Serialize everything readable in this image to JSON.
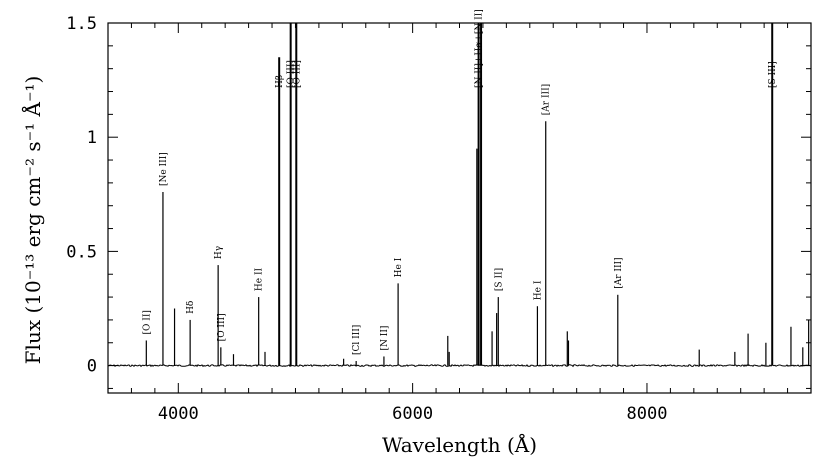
{
  "chart_data": {
    "type": "line",
    "title": "",
    "xlabel": "Wavelength (Å)",
    "ylabel": "Flux (10⁻¹³ erg cm⁻² s⁻¹ Å⁻¹)",
    "xlim": [
      3400,
      9400
    ],
    "ylim": [
      -0.12,
      1.5
    ],
    "xticks": [
      4000,
      6000,
      8000
    ],
    "xtick_labels": [
      "4000",
      "6000",
      "8000"
    ],
    "yticks": [
      0,
      0.5,
      1,
      1.5
    ],
    "ytick_labels": [
      "0",
      "0.5",
      "1",
      "1.5"
    ],
    "grid": false,
    "series": [
      {
        "lines": [
          {
            "x": 3727,
            "y": 0.11,
            "label": "[O II]"
          },
          {
            "x": 3869,
            "y": 0.76,
            "label": "[Ne III]"
          },
          {
            "x": 3968,
            "y": 0.25,
            "label": ""
          },
          {
            "x": 4101,
            "y": 0.2,
            "label": "Hδ"
          },
          {
            "x": 4340,
            "y": 0.44,
            "label": "Hγ"
          },
          {
            "x": 4363,
            "y": 0.08,
            "label": "[O III]"
          },
          {
            "x": 4471,
            "y": 0.05,
            "label": ""
          },
          {
            "x": 4686,
            "y": 0.3,
            "label": "He II"
          },
          {
            "x": 4740,
            "y": 0.06,
            "label": ""
          },
          {
            "x": 4861,
            "y": 1.35,
            "label": "Hβ"
          },
          {
            "x": 4959,
            "y": 1.5,
            "label": "[O III]"
          },
          {
            "x": 5007,
            "y": 1.5,
            "label": "[O III]"
          },
          {
            "x": 5411,
            "y": 0.03,
            "label": ""
          },
          {
            "x": 5518,
            "y": 0.02,
            "label": "[Cl III]"
          },
          {
            "x": 5755,
            "y": 0.04,
            "label": "[N II]"
          },
          {
            "x": 5876,
            "y": 0.36,
            "label": "He I"
          },
          {
            "x": 6300,
            "y": 0.13,
            "label": ""
          },
          {
            "x": 6312,
            "y": 0.06,
            "label": ""
          },
          {
            "x": 6548,
            "y": 0.95,
            "label": ""
          },
          {
            "x": 6563,
            "y": 1.5,
            "label": "[N II]+Hα+[N II]"
          },
          {
            "x": 6584,
            "y": 1.5,
            "label": ""
          },
          {
            "x": 6678,
            "y": 0.15,
            "label": ""
          },
          {
            "x": 6717,
            "y": 0.23,
            "label": ""
          },
          {
            "x": 6731,
            "y": 0.3,
            "label": "[S II]"
          },
          {
            "x": 7065,
            "y": 0.26,
            "label": "He I"
          },
          {
            "x": 7136,
            "y": 1.07,
            "label": "[Ar III]"
          },
          {
            "x": 7320,
            "y": 0.15,
            "label": ""
          },
          {
            "x": 7330,
            "y": 0.11,
            "label": ""
          },
          {
            "x": 7751,
            "y": 0.31,
            "label": "[Ar III]"
          },
          {
            "x": 8446,
            "y": 0.07,
            "label": ""
          },
          {
            "x": 8750,
            "y": 0.06,
            "label": ""
          },
          {
            "x": 8863,
            "y": 0.14,
            "label": ""
          },
          {
            "x": 9015,
            "y": 0.1,
            "label": ""
          },
          {
            "x": 9069,
            "y": 1.5,
            "label": "[S III]"
          },
          {
            "x": 9229,
            "y": 0.17,
            "label": ""
          },
          {
            "x": 9330,
            "y": 0.08,
            "label": ""
          },
          {
            "x": 9380,
            "y": 0.2,
            "label": ""
          }
        ]
      }
    ]
  }
}
